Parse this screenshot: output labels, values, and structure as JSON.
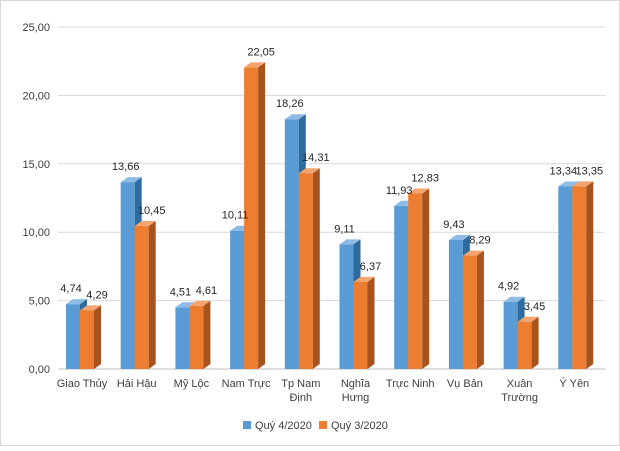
{
  "chart_data": {
    "type": "bar",
    "categories": [
      [
        "Giao Thủy"
      ],
      [
        "Hải Hậu"
      ],
      [
        "Mỹ Lộc"
      ],
      [
        "Nam Trực"
      ],
      [
        "Tp Nam",
        "Định"
      ],
      [
        "Nghĩa",
        "Hưng"
      ],
      [
        "Trực Ninh"
      ],
      [
        "Vụ Bản"
      ],
      [
        "Xuân",
        "Trường"
      ],
      [
        "Ý Yên"
      ]
    ],
    "series": [
      {
        "name": "Quý 4/2020",
        "color": "#5B9BD5",
        "side_color": "#2E6B9E",
        "top_color": "#8DBBE6",
        "values": [
          4.74,
          13.66,
          4.51,
          10.11,
          18.26,
          9.11,
          11.93,
          9.43,
          4.92,
          13.34
        ],
        "labels": [
          "4,74",
          "13,66",
          "4,51",
          "10,11",
          "18,26",
          "9,11",
          "11,93",
          "9,43",
          "4,92",
          "13,34"
        ]
      },
      {
        "name": "Quý 3/2020",
        "color": "#ED7D31",
        "side_color": "#A8531C",
        "top_color": "#F4A46E",
        "values": [
          4.29,
          10.45,
          4.61,
          22.05,
          14.31,
          6.37,
          12.83,
          8.29,
          3.45,
          13.35
        ],
        "labels": [
          "4,29",
          "10,45",
          "4,61",
          "22,05",
          "14,31",
          "6,37",
          "12,83",
          "8,29",
          "3,45",
          "13,35"
        ]
      }
    ],
    "ylim": [
      0,
      25
    ],
    "yticks": [
      0,
      5,
      10,
      15,
      20,
      25
    ],
    "ytick_labels": [
      "0,00",
      "5,00",
      "10,00",
      "15,00",
      "20,00",
      "25,00"
    ],
    "grid": true,
    "legend_position": "bottom"
  }
}
